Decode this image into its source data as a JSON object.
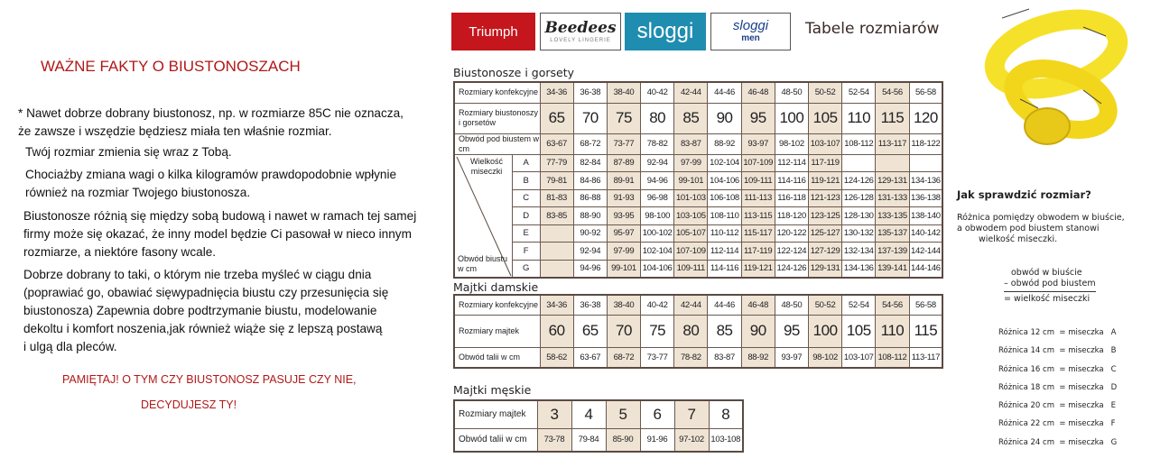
{
  "facts": {
    "title": "WAŻNE FAKTY O BIUSTONOSZACH",
    "paragraphs": [
      [
        "* Nawet dobrze dobrany biustonosz, np. w rozmiarze 85C nie oznacza,",
        "  że zawsze i wszędzie będziesz miała ten właśnie rozmiar."
      ],
      [
        "Twój rozmiar zmienia się wraz z Tobą."
      ],
      [
        "Chociażby zmiana wagi o kilka kilogramów  prawdopodobnie wpłynie",
        "również na rozmiar Twojego biustonosza."
      ],
      [
        "Biustonosze różnią się między sobą budową i nawet w ramach tej samej",
        "firmy może się okazać, że inny model będzie Ci pasował w nieco innym",
        "rozmiarze, a niektóre fasony wcale."
      ],
      [
        "Dobrze dobrany to taki, o którym nie trzeba myśleć w ciągu dnia",
        "(poprawiać go, obawiać sięwypadnięcia biustu czy przesunięcia się",
        "biustonosza) Zapewnia dobre podtrzymanie biustu, modelowanie",
        "dekoltu i komfort noszenia,jak również wiąże się z lepszą postawą",
        "i ulgą dla pleców."
      ]
    ],
    "reminder": [
      "PAMIĘTAJ! O TYM CZY BIUSTONOSZ PASUJE CZY NIE,",
      "DECYDUJESZ TY!"
    ]
  },
  "logos": {
    "triumph": "Triumph",
    "beedees": "Beedees",
    "beedees_tagline": "LOVELY LINGERIE",
    "sloggi": "sloggi",
    "sloggi_men": "sloggi",
    "sloggi_men_sub": "men",
    "colors": {
      "triumph": "#c4161c",
      "sloggi": "#1f8db0"
    }
  },
  "header_title": "Tabele rozmiarów",
  "bra": {
    "title": "Biustonosze i gorsety",
    "labels": {
      "konf": "Rozmiary konfekcyjne",
      "sizes": "Rozmiary biustonoszy i gorsetów",
      "underbust": "Obwód pod biustem w cm",
      "cup": "Wielkość miseczki",
      "bust": "Obwód biustu w cm"
    },
    "konf": [
      "34-36",
      "36-38",
      "38-40",
      "40-42",
      "42-44",
      "44-46",
      "46-48",
      "48-50",
      "50-52",
      "52-54",
      "54-56",
      "56-58"
    ],
    "sizes": [
      "65",
      "70",
      "75",
      "80",
      "85",
      "90",
      "95",
      "100",
      "105",
      "110",
      "115",
      "120"
    ],
    "underbust": [
      "63-67",
      "68-72",
      "73-77",
      "78-82",
      "83-87",
      "88-92",
      "93-97",
      "98-102",
      "103-107",
      "108-112",
      "113-117",
      "118-122"
    ],
    "cups": [
      {
        "letter": "A",
        "values": [
          "77-79",
          "82-84",
          "87-89",
          "92-94",
          "97-99",
          "102-104",
          "107-109",
          "112-114",
          "117-119",
          "",
          "",
          ""
        ]
      },
      {
        "letter": "B",
        "values": [
          "79-81",
          "84-86",
          "89-91",
          "94-96",
          "99-101",
          "104-106",
          "109-111",
          "114-116",
          "119-121",
          "124-126",
          "129-131",
          "134-136"
        ]
      },
      {
        "letter": "C",
        "values": [
          "81-83",
          "86-88",
          "91-93",
          "96-98",
          "101-103",
          "106-108",
          "111-113",
          "116-118",
          "121-123",
          "126-128",
          "131-133",
          "136-138"
        ]
      },
      {
        "letter": "D",
        "values": [
          "83-85",
          "88-90",
          "93-95",
          "98-100",
          "103-105",
          "108-110",
          "113-115",
          "118-120",
          "123-125",
          "128-130",
          "133-135",
          "138-140"
        ]
      },
      {
        "letter": "E",
        "values": [
          "",
          "90-92",
          "95-97",
          "100-102",
          "105-107",
          "110-112",
          "115-117",
          "120-122",
          "125-127",
          "130-132",
          "135-137",
          "140-142"
        ]
      },
      {
        "letter": "F",
        "values": [
          "",
          "92-94",
          "97-99",
          "102-104",
          "107-109",
          "112-114",
          "117-119",
          "122-124",
          "127-129",
          "132-134",
          "137-139",
          "142-144"
        ]
      },
      {
        "letter": "G",
        "values": [
          "",
          "94-96",
          "99-101",
          "104-106",
          "109-111",
          "114-116",
          "119-121",
          "124-126",
          "129-131",
          "134-136",
          "139-141",
          "144-146"
        ]
      }
    ]
  },
  "women": {
    "title": "Majtki damskie",
    "labels": {
      "konf": "Rozmiary konfekcyjne",
      "sizes": "Rozmiary majtek",
      "waist": "Obwód talii w cm"
    },
    "konf": [
      "34-36",
      "36-38",
      "38-40",
      "40-42",
      "42-44",
      "44-46",
      "46-48",
      "48-50",
      "50-52",
      "52-54",
      "54-56",
      "56-58"
    ],
    "sizes": [
      "60",
      "65",
      "70",
      "75",
      "80",
      "85",
      "90",
      "95",
      "100",
      "105",
      "110",
      "115"
    ],
    "waist": [
      "58-62",
      "63-67",
      "68-72",
      "73-77",
      "78-82",
      "83-87",
      "88-92",
      "93-97",
      "98-102",
      "103-107",
      "108-112",
      "113-117"
    ]
  },
  "men": {
    "title": "Majtki męskie",
    "labels": {
      "sizes": "Rozmiary majtek",
      "waist": "Obwód talii w cm"
    },
    "sizes": [
      "3",
      "4",
      "5",
      "6",
      "7",
      "8"
    ],
    "waist": [
      "73-78",
      "79-84",
      "85-90",
      "91-96",
      "97-102",
      "103-108"
    ]
  },
  "howto": {
    "title": "Jak sprawdzić rozmiar?",
    "desc": [
      "Różnica pomiędzy obwodem w biuście,",
      "a obwodem pod biustem stanowi",
      "wielkość miseczki."
    ],
    "formula": [
      "obwód w biuście",
      "– obwód pod biustem",
      "= wielkość miseczki"
    ],
    "rows": [
      {
        "text": "Różnica 12 cm  = miseczka",
        "cup": "A"
      },
      {
        "text": "Różnica 14 cm  = miseczka",
        "cup": "B"
      },
      {
        "text": "Różnica 16 cm  = miseczka",
        "cup": "C"
      },
      {
        "text": "Różnica 18 cm  = miseczka",
        "cup": "D"
      },
      {
        "text": "Różnica 20 cm  = miseczka",
        "cup": "E"
      },
      {
        "text": "Różnica 22 cm  = miseczka",
        "cup": "F"
      },
      {
        "text": "Różnica 24 cm  = miseczka",
        "cup": "G"
      }
    ]
  },
  "tape_color": "#f5e12a"
}
